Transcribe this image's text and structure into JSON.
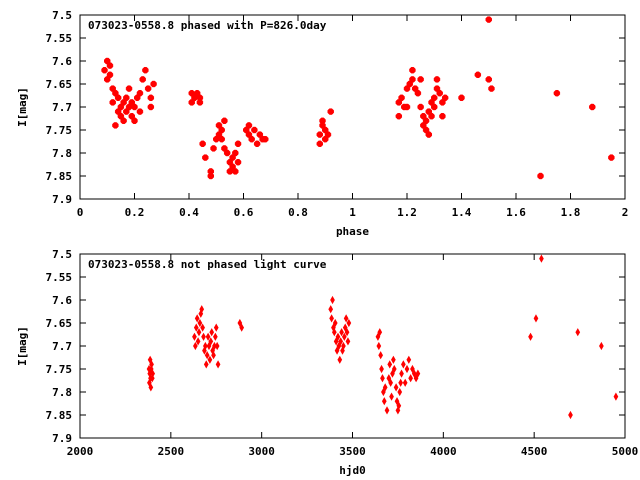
{
  "chart_data": [
    {
      "type": "scatter",
      "title": "073023-0558.8 phased with P=826.0day",
      "xlabel": "phase",
      "ylabel": "I[mag]",
      "xlim": [
        0,
        2
      ],
      "ylim": [
        7.5,
        7.9
      ],
      "y_inverted": true,
      "xticks": [
        "0",
        "0.2",
        "0.4",
        "0.6",
        "0.8",
        "1",
        "1.2",
        "1.4",
        "1.6",
        "1.8",
        "2"
      ],
      "yticks": [
        "7.5",
        "7.55",
        "7.6",
        "7.65",
        "7.7",
        "7.75",
        "7.8",
        "7.85",
        "7.9"
      ],
      "marker": "plus-star",
      "color": "#ff0000",
      "series": [
        {
          "values": [
            [
              0.09,
              7.62
            ],
            [
              0.1,
              7.6
            ],
            [
              0.1,
              7.64
            ],
            [
              0.11,
              7.63
            ],
            [
              0.11,
              7.61
            ],
            [
              0.12,
              7.66
            ],
            [
              0.12,
              7.69
            ],
            [
              0.13,
              7.74
            ],
            [
              0.13,
              7.67
            ],
            [
              0.14,
              7.71
            ],
            [
              0.14,
              7.68
            ],
            [
              0.15,
              7.72
            ],
            [
              0.15,
              7.7
            ],
            [
              0.16,
              7.69
            ],
            [
              0.16,
              7.73
            ],
            [
              0.17,
              7.71
            ],
            [
              0.17,
              7.68
            ],
            [
              0.18,
              7.7
            ],
            [
              0.18,
              7.66
            ],
            [
              0.19,
              7.69
            ],
            [
              0.19,
              7.72
            ],
            [
              0.2,
              7.7
            ],
            [
              0.2,
              7.73
            ],
            [
              0.21,
              7.68
            ],
            [
              0.22,
              7.67
            ],
            [
              0.22,
              7.71
            ],
            [
              0.23,
              7.64
            ],
            [
              0.24,
              7.62
            ],
            [
              0.25,
              7.66
            ],
            [
              0.26,
              7.68
            ],
            [
              0.26,
              7.7
            ],
            [
              0.27,
              7.65
            ],
            [
              0.41,
              7.67
            ],
            [
              0.41,
              7.69
            ],
            [
              0.42,
              7.68
            ],
            [
              0.43,
              7.67
            ],
            [
              0.44,
              7.69
            ],
            [
              0.44,
              7.68
            ],
            [
              0.45,
              7.78
            ],
            [
              0.46,
              7.81
            ],
            [
              0.48,
              7.84
            ],
            [
              0.48,
              7.85
            ],
            [
              0.49,
              7.79
            ],
            [
              0.5,
              7.77
            ],
            [
              0.51,
              7.76
            ],
            [
              0.51,
              7.74
            ],
            [
              0.52,
              7.75
            ],
            [
              0.52,
              7.77
            ],
            [
              0.53,
              7.73
            ],
            [
              0.53,
              7.79
            ],
            [
              0.54,
              7.8
            ],
            [
              0.55,
              7.82
            ],
            [
              0.55,
              7.84
            ],
            [
              0.56,
              7.83
            ],
            [
              0.56,
              7.81
            ],
            [
              0.57,
              7.84
            ],
            [
              0.57,
              7.8
            ],
            [
              0.58,
              7.82
            ],
            [
              0.58,
              7.78
            ],
            [
              0.61,
              7.75
            ],
            [
              0.62,
              7.74
            ],
            [
              0.62,
              7.76
            ],
            [
              0.63,
              7.77
            ],
            [
              0.64,
              7.75
            ],
            [
              0.65,
              7.78
            ],
            [
              0.66,
              7.76
            ],
            [
              0.67,
              7.77
            ],
            [
              0.68,
              7.77
            ],
            [
              0.88,
              7.76
            ],
            [
              0.88,
              7.78
            ],
            [
              0.89,
              7.74
            ],
            [
              0.89,
              7.73
            ],
            [
              0.9,
              7.75
            ],
            [
              0.9,
              7.77
            ],
            [
              0.91,
              7.76
            ],
            [
              0.92,
              7.71
            ],
            [
              1.17,
              7.69
            ],
            [
              1.17,
              7.72
            ],
            [
              1.18,
              7.68
            ],
            [
              1.19,
              7.7
            ],
            [
              1.2,
              7.66
            ],
            [
              1.2,
              7.7
            ],
            [
              1.21,
              7.65
            ],
            [
              1.22,
              7.62
            ],
            [
              1.22,
              7.64
            ],
            [
              1.23,
              7.66
            ],
            [
              1.24,
              7.67
            ],
            [
              1.25,
              7.64
            ],
            [
              1.25,
              7.7
            ],
            [
              1.26,
              7.72
            ],
            [
              1.26,
              7.74
            ],
            [
              1.27,
              7.75
            ],
            [
              1.27,
              7.73
            ],
            [
              1.28,
              7.76
            ],
            [
              1.28,
              7.71
            ],
            [
              1.29,
              7.72
            ],
            [
              1.29,
              7.69
            ],
            [
              1.3,
              7.7
            ],
            [
              1.3,
              7.68
            ],
            [
              1.31,
              7.66
            ],
            [
              1.31,
              7.64
            ],
            [
              1.32,
              7.67
            ],
            [
              1.33,
              7.69
            ],
            [
              1.33,
              7.72
            ],
            [
              1.34,
              7.68
            ],
            [
              1.4,
              7.68
            ],
            [
              1.46,
              7.63
            ],
            [
              1.5,
              7.51
            ],
            [
              1.5,
              7.64
            ],
            [
              1.51,
              7.66
            ],
            [
              1.69,
              7.85
            ],
            [
              1.75,
              7.67
            ],
            [
              1.88,
              7.7
            ],
            [
              1.95,
              7.81
            ]
          ]
        }
      ]
    },
    {
      "type": "scatter",
      "title": "073023-0558.8 not phased light curve",
      "xlabel": "hjd0",
      "ylabel": "I[mag]",
      "xlim": [
        2000,
        5000
      ],
      "ylim": [
        7.5,
        7.9
      ],
      "y_inverted": true,
      "xticks": [
        "2000",
        "2500",
        "3000",
        "3500",
        "4000",
        "4500",
        "5000"
      ],
      "yticks": [
        "7.5",
        "7.55",
        "7.6",
        "7.65",
        "7.7",
        "7.75",
        "7.8",
        "7.85",
        "7.9"
      ],
      "marker": "diamond",
      "color": "#ff0000",
      "series": [
        {
          "values": [
            [
              2380,
              7.75
            ],
            [
              2382,
              7.78
            ],
            [
              2384,
              7.76
            ],
            [
              2386,
              7.73
            ],
            [
              2388,
              7.77
            ],
            [
              2390,
              7.79
            ],
            [
              2392,
              7.75
            ],
            [
              2394,
              7.74
            ],
            [
              2398,
              7.77
            ],
            [
              2400,
              7.76
            ],
            [
              2630,
              7.68
            ],
            [
              2635,
              7.7
            ],
            [
              2640,
              7.66
            ],
            [
              2645,
              7.64
            ],
            [
              2650,
              7.69
            ],
            [
              2655,
              7.67
            ],
            [
              2660,
              7.65
            ],
            [
              2665,
              7.63
            ],
            [
              2670,
              7.62
            ],
            [
              2675,
              7.66
            ],
            [
              2680,
              7.68
            ],
            [
              2685,
              7.71
            ],
            [
              2690,
              7.7
            ],
            [
              2695,
              7.74
            ],
            [
              2700,
              7.72
            ],
            [
              2705,
              7.68
            ],
            [
              2710,
              7.7
            ],
            [
              2715,
              7.73
            ],
            [
              2720,
              7.69
            ],
            [
              2725,
              7.67
            ],
            [
              2730,
              7.71
            ],
            [
              2735,
              7.72
            ],
            [
              2740,
              7.7
            ],
            [
              2745,
              7.68
            ],
            [
              2750,
              7.66
            ],
            [
              2755,
              7.7
            ],
            [
              2760,
              7.74
            ],
            [
              2880,
              7.65
            ],
            [
              2890,
              7.66
            ],
            [
              3380,
              7.62
            ],
            [
              3385,
              7.64
            ],
            [
              3390,
              7.6
            ],
            [
              3395,
              7.66
            ],
            [
              3400,
              7.67
            ],
            [
              3405,
              7.65
            ],
            [
              3410,
              7.69
            ],
            [
              3415,
              7.71
            ],
            [
              3420,
              7.68
            ],
            [
              3425,
              7.7
            ],
            [
              3430,
              7.73
            ],
            [
              3435,
              7.69
            ],
            [
              3440,
              7.67
            ],
            [
              3445,
              7.71
            ],
            [
              3450,
              7.7
            ],
            [
              3455,
              7.68
            ],
            [
              3460,
              7.66
            ],
            [
              3465,
              7.64
            ],
            [
              3470,
              7.67
            ],
            [
              3475,
              7.69
            ],
            [
              3480,
              7.65
            ],
            [
              3640,
              7.68
            ],
            [
              3645,
              7.7
            ],
            [
              3650,
              7.67
            ],
            [
              3655,
              7.72
            ],
            [
              3660,
              7.75
            ],
            [
              3665,
              7.77
            ],
            [
              3670,
              7.8
            ],
            [
              3675,
              7.82
            ],
            [
              3680,
              7.79
            ],
            [
              3690,
              7.84
            ],
            [
              3700,
              7.77
            ],
            [
              3705,
              7.74
            ],
            [
              3710,
              7.78
            ],
            [
              3715,
              7.81
            ],
            [
              3720,
              7.76
            ],
            [
              3725,
              7.73
            ],
            [
              3730,
              7.75
            ],
            [
              3740,
              7.79
            ],
            [
              3745,
              7.82
            ],
            [
              3750,
              7.84
            ],
            [
              3755,
              7.83
            ],
            [
              3760,
              7.8
            ],
            [
              3765,
              7.78
            ],
            [
              3770,
              7.76
            ],
            [
              3780,
              7.74
            ],
            [
              3790,
              7.78
            ],
            [
              3800,
              7.75
            ],
            [
              3810,
              7.73
            ],
            [
              3820,
              7.77
            ],
            [
              3830,
              7.75
            ],
            [
              3840,
              7.76
            ],
            [
              3850,
              7.77
            ],
            [
              3860,
              7.76
            ],
            [
              4480,
              7.68
            ],
            [
              4510,
              7.64
            ],
            [
              4540,
              7.51
            ],
            [
              4740,
              7.67
            ],
            [
              4700,
              7.85
            ],
            [
              4870,
              7.7
            ],
            [
              4950,
              7.81
            ]
          ]
        }
      ]
    }
  ]
}
